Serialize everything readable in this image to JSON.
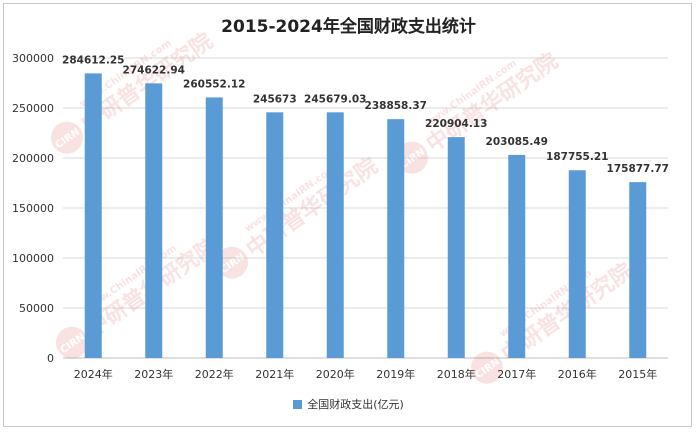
{
  "chart_data": {
    "type": "bar",
    "title": "2015-2024年全国财政支出统计",
    "categories": [
      "2024年",
      "2023年",
      "2022年",
      "2021年",
      "2020年",
      "2019年",
      "2018年",
      "2017年",
      "2016年",
      "2015年"
    ],
    "series": [
      {
        "name": "全国财政支出(亿元)",
        "values": [
          284612.25,
          274622.94,
          260552.12,
          245673,
          245679.03,
          238858.37,
          220904.13,
          203085.49,
          187755.21,
          175877.77
        ],
        "labels": [
          "284612.25",
          "274622.94",
          "260552.12",
          "245673",
          "245679.03",
          "238858.37",
          "220904.13",
          "203085.49",
          "187755.21",
          "175877.77"
        ]
      }
    ],
    "y_ticks": [
      "0",
      "50000",
      "100000",
      "150000",
      "200000",
      "250000",
      "300000"
    ],
    "ylim": [
      0,
      300000
    ],
    "grid": true,
    "legend": "bottom",
    "bar_color": "#5b9bd5"
  },
  "watermark": {
    "text": "中研普华研究院",
    "subtext": "www.ChinaIRN.com",
    "logo": "CIRN"
  }
}
